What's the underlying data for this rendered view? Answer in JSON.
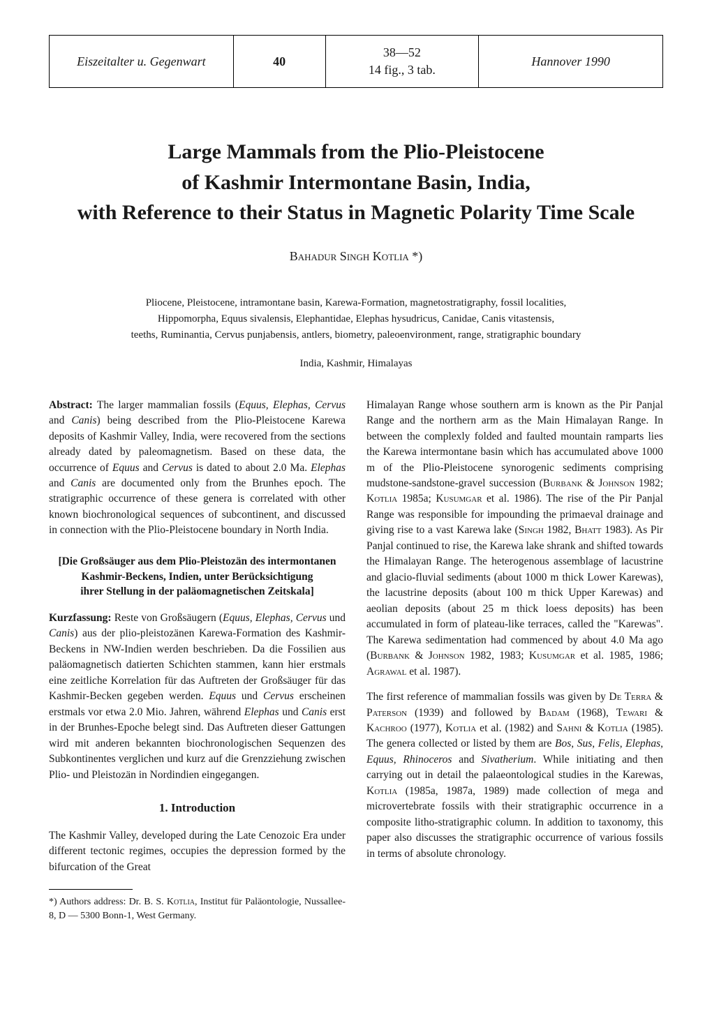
{
  "header": {
    "journal": "Eiszeitalter u. Gegenwart",
    "volume": "40",
    "pages_line1": "38—52",
    "pages_line2": "14 fig., 3 tab.",
    "pubinfo": "Hannover 1990"
  },
  "title_line1": "Large Mammals from the Plio-Pleistocene",
  "title_line2": "of Kashmir Intermontane Basin, India,",
  "title_line3": "with Reference to their Status in Magnetic Polarity Time Scale",
  "author": "Bahadur Singh Kotlia *)",
  "keywords_line1": "Pliocene, Pleistocene, intramontane basin, Karewa-Formation, magnetostratigraphy, fossil localities,",
  "keywords_line2": "Hippomorpha, Equus sivalensis, Elephantidae, Elephas hysudricus, Canidae, Canis vitastensis,",
  "keywords_line3": "teeths, Ruminantia, Cervus punjabensis, antlers, biometry, paleoenvironment, range, stratigraphic boundary",
  "location": "India, Kashmir, Himalayas",
  "abstract": {
    "label": "Abstract:",
    "text_1": " The larger mammalian fossils (",
    "text_2": "Equus, Elephas, Cervus",
    "text_3": " and ",
    "text_4": "Canis",
    "text_5": ") being described from the Plio-Pleistocene Karewa deposits of Kashmir Valley, India, were recovered from the sections already dated by paleomagnetism. Based on these data, the occurrence of ",
    "text_6": "Equus",
    "text_7": " and ",
    "text_8": "Cervus",
    "text_9": " is dated to about 2.0 Ma. ",
    "text_10": "Elephas",
    "text_11": " and ",
    "text_12": "Canis",
    "text_13": " are documented only from the Brunhes epoch. The stratigraphic occurrence of these genera is correlated with other known biochronological sequences of subcontinent, and discussed in connection with the Plio-Pleistocene boundary in North India."
  },
  "german_title_line1": "[Die Großsäuger aus dem Plio-Pleistozän des intermontanen",
  "german_title_line2": "Kashmir-Beckens, Indien, unter Berücksichtigung",
  "german_title_line3": "ihrer Stellung in der paläomagnetischen Zeitskala]",
  "kurz": {
    "label": "Kurzfassung:",
    "text_1": " Reste von Großsäugern (",
    "text_2": "Equus, Elephas, Cervus",
    "text_3": " und ",
    "text_4": "Canis",
    "text_5": ") aus der plio-pleistozänen Karewa-Formation des Kashmir-Beckens in NW-Indien werden beschrieben. Da die Fossilien aus paläomagnetisch datierten Schichten stammen, kann hier erstmals eine zeitliche Korrelation für das Auftreten der Großsäuger für das Kashmir-Becken gegeben werden. ",
    "text_6": "Equus",
    "text_7": " und ",
    "text_8": "Cervus",
    "text_9": " erscheinen erstmals vor etwa 2.0 Mio. Jahren, während ",
    "text_10": "Elephas",
    "text_11": " und ",
    "text_12": "Canis",
    "text_13": " erst in der Brunhes-Epoche belegt sind. Das Auftreten dieser Gattungen wird mit anderen bekannten biochronologischen Sequenzen des Subkontinentes verglichen und kurz auf die Grenzziehung zwischen Plio- und Pleistozän in Nordindien eingegangen."
  },
  "section_heading": "1. Introduction",
  "intro_p1": "The Kashmir Valley, developed during the Late Cenozoic Era under different tectonic regimes, occupies the depression formed by the bifurcation of the Great",
  "footnote_pre": "*) Authors address: Dr. B. S. ",
  "footnote_name": "Kotlia",
  "footnote_post": ", Institut für Paläontologie, Nussallee-8, D — 5300 Bonn-1, West Germany.",
  "right_p1_a": "Himalayan Range whose southern arm is known as the Pir Panjal Range and the northern arm as the Main Himalayan Range. In between the complexly folded and faulted mountain ramparts lies the Karewa intermontane basin which has accumulated above 1000 m of the Plio-Pleistocene synorogenic sediments comprising mudstone-sandstone-gravel succession (",
  "right_p1_ref1": "Burbank & Johnson",
  "right_p1_b": " 1982; ",
  "right_p1_ref2": "Kotlia",
  "right_p1_c": " 1985a; ",
  "right_p1_ref3": "Kusumgar",
  "right_p1_d": " et al. 1986). The rise of the Pir Panjal Range was responsible for impounding the primaeval drainage and giving rise to a vast Karewa lake (",
  "right_p1_ref4": "Singh",
  "right_p1_e": " 1982, ",
  "right_p1_ref5": "Bhatt",
  "right_p1_f": " 1983). As Pir Panjal continued to rise, the Karewa lake shrank and shifted towards the Himalayan Range. The heterogenous assemblage of lacustrine and glacio-fluvial sediments (about 1000 m thick Lower Karewas), the lacustrine deposits (about 100 m thick Upper Karewas) and aeolian deposits (about 25 m thick loess deposits) has been accumulated in form of plateau-like terraces, called the \"Karewas\". The Karewa sedimentation had commenced by about 4.0 Ma ago (",
  "right_p1_ref6": "Burbank & Johnson",
  "right_p1_g": " 1982, 1983; ",
  "right_p1_ref7": "Kusumgar",
  "right_p1_h": " et al. 1985, 1986; ",
  "right_p1_ref8": "Agrawal",
  "right_p1_i": " et al. 1987).",
  "right_p2_a": "The first reference of mammalian fossils was given by ",
  "right_p2_ref1": "De Terra & Paterson",
  "right_p2_b": " (1939) and followed by ",
  "right_p2_ref2": "Badam",
  "right_p2_c": " (1968), ",
  "right_p2_ref3": "Tewari & Kachroo",
  "right_p2_d": " (1977), ",
  "right_p2_ref4": "Kotlia",
  "right_p2_e": " et al. (1982) and ",
  "right_p2_ref5": "Sahni & Kotlia",
  "right_p2_f": " (1985). The genera collected or listed by them are ",
  "right_p2_genera": "Bos, Sus, Felis, Elephas, Equus, Rhinoceros",
  "right_p2_g": " and ",
  "right_p2_genera2": "Sivatherium",
  "right_p2_h": ". While initiating and then carrying out in detail the palaeontological studies in the Karewas, ",
  "right_p2_ref6": "Kotlia",
  "right_p2_i": " (1985a, 1987a, 1989) made collection of mega and microvertebrate fossils with their stratigraphic occurrence in a composite litho-stratigraphic column. In addition to taxonomy, this paper also discusses the stratigraphic occurrence of various fossils in terms of absolute chronology."
}
